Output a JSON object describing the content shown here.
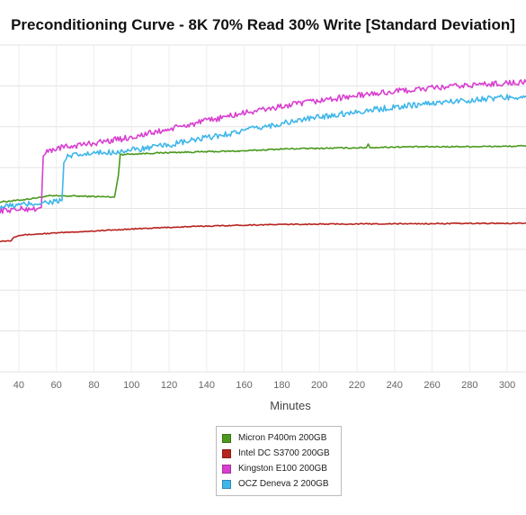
{
  "chart_data": {
    "type": "line",
    "title": "Preconditioning Curve - 8K 70% Read 30% Write [Standard Deviation]",
    "xlabel": "Minutes",
    "ylabel": "",
    "x_range": [
      30,
      310
    ],
    "x_ticks": [
      40,
      60,
      80,
      100,
      120,
      140,
      160,
      180,
      200,
      220,
      240,
      260,
      280,
      300
    ],
    "y_gridlines": 8,
    "grid": true,
    "legend_position": "bottom",
    "series": [
      {
        "name": "Micron P400m 200GB",
        "color": "#4a9a1e",
        "points": [
          [
            30,
            0.52
          ],
          [
            40,
            0.525
          ],
          [
            53,
            0.535
          ],
          [
            54,
            0.538
          ],
          [
            70,
            0.538
          ],
          [
            90,
            0.535
          ],
          [
            91,
            0.535
          ],
          [
            93,
            0.6
          ],
          [
            94,
            0.665
          ],
          [
            120,
            0.671
          ],
          [
            160,
            0.676
          ],
          [
            180,
            0.682
          ],
          [
            200,
            0.684
          ],
          [
            225,
            0.686
          ],
          [
            226,
            0.697
          ],
          [
            227,
            0.686
          ],
          [
            240,
            0.688
          ],
          [
            270,
            0.689
          ],
          [
            300,
            0.69
          ],
          [
            310,
            0.691
          ]
        ]
      },
      {
        "name": "Intel DC S3700 200GB",
        "color": "#b8241f",
        "points": [
          [
            30,
            0.4
          ],
          [
            36,
            0.401
          ],
          [
            37,
            0.411
          ],
          [
            40,
            0.418
          ],
          [
            60,
            0.425
          ],
          [
            80,
            0.431
          ],
          [
            100,
            0.437
          ],
          [
            120,
            0.442
          ],
          [
            140,
            0.446
          ],
          [
            160,
            0.449
          ],
          [
            180,
            0.451
          ],
          [
            200,
            0.452
          ],
          [
            240,
            0.453
          ],
          [
            280,
            0.454
          ],
          [
            310,
            0.455
          ]
        ]
      },
      {
        "name": "Kingston E100 200GB",
        "color": "#d83fd0",
        "points": [
          [
            30,
            0.494
          ],
          [
            40,
            0.497
          ],
          [
            50,
            0.5
          ],
          [
            52,
            0.503
          ],
          [
            53,
            0.66
          ],
          [
            55,
            0.672
          ],
          [
            60,
            0.684
          ],
          [
            80,
            0.7
          ],
          [
            100,
            0.718
          ],
          [
            120,
            0.742
          ],
          [
            140,
            0.768
          ],
          [
            160,
            0.792
          ],
          [
            180,
            0.812
          ],
          [
            200,
            0.83
          ],
          [
            220,
            0.845
          ],
          [
            240,
            0.858
          ],
          [
            260,
            0.868
          ],
          [
            280,
            0.877
          ],
          [
            300,
            0.884
          ],
          [
            310,
            0.886
          ]
        ]
      },
      {
        "name": "OCZ Deneva 2 200GB",
        "color": "#3fb6ea",
        "points": [
          [
            30,
            0.505
          ],
          [
            40,
            0.51
          ],
          [
            50,
            0.516
          ],
          [
            60,
            0.522
          ],
          [
            63,
            0.524
          ],
          [
            64,
            0.64
          ],
          [
            66,
            0.658
          ],
          [
            70,
            0.662
          ],
          [
            80,
            0.668
          ],
          [
            100,
            0.678
          ],
          [
            120,
            0.694
          ],
          [
            140,
            0.716
          ],
          [
            160,
            0.738
          ],
          [
            180,
            0.76
          ],
          [
            200,
            0.78
          ],
          [
            220,
            0.796
          ],
          [
            240,
            0.81
          ],
          [
            260,
            0.822
          ],
          [
            280,
            0.832
          ],
          [
            300,
            0.84
          ],
          [
            310,
            0.844
          ]
        ]
      }
    ]
  }
}
